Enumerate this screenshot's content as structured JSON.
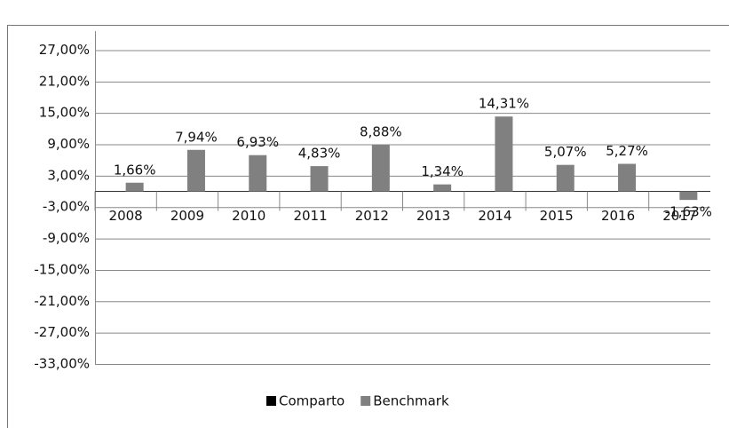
{
  "chart_data": {
    "type": "bar",
    "categories": [
      "2008",
      "2009",
      "2010",
      "2011",
      "2012",
      "2013",
      "2014",
      "2015",
      "2016",
      "2017"
    ],
    "series": [
      {
        "name": "Comparto",
        "color": "#000000",
        "values": [
          null,
          null,
          null,
          null,
          null,
          null,
          null,
          null,
          null,
          null
        ]
      },
      {
        "name": "Benchmark",
        "color": "#808080",
        "values": [
          1.66,
          7.94,
          6.93,
          4.83,
          8.88,
          1.34,
          14.31,
          5.07,
          5.27,
          -1.63
        ],
        "value_labels": [
          "1,66%",
          "7,94%",
          "6,93%",
          "4,83%",
          "8,88%",
          "1,34%",
          "14,31%",
          "5,07%",
          "5,27%",
          "-1,63%"
        ]
      }
    ],
    "ylim": [
      -33,
      32
    ],
    "yticks": [
      {
        "value": 27,
        "label": "27,00%"
      },
      {
        "value": 21,
        "label": "21,00%"
      },
      {
        "value": 15,
        "label": "15,00%"
      },
      {
        "value": 9,
        "label": "9,00%"
      },
      {
        "value": 3,
        "label": "3,00%"
      },
      {
        "value": -3,
        "label": "-3,00%"
      },
      {
        "value": -9,
        "label": "-9,00%"
      },
      {
        "value": -15,
        "label": "-15,00%"
      },
      {
        "value": -21,
        "label": "-21,00%"
      },
      {
        "value": -27,
        "label": "-27,00%"
      },
      {
        "value": -33,
        "label": "-33,00%"
      }
    ],
    "grid": true,
    "legend": "bottom"
  }
}
